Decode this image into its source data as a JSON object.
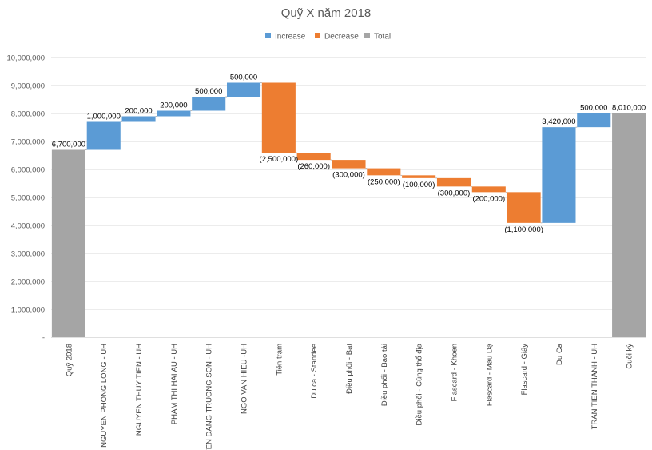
{
  "chart_data": {
    "type": "waterfall",
    "title": "Quỹ X năm 2018",
    "legend": [
      "Increase",
      "Decrease",
      "Total"
    ],
    "legend_position": "top",
    "colors": {
      "increase": "#5b9bd5",
      "decrease": "#ed7d31",
      "total": "#a5a5a5"
    },
    "ylim": [
      0,
      10000000
    ],
    "yticks": [
      "-",
      "1,000,000",
      "2,000,000",
      "3,000,000",
      "4,000,000",
      "5,000,000",
      "6,000,000",
      "7,000,000",
      "8,000,000",
      "9,000,000",
      "10,000,000"
    ],
    "grid": true,
    "items": [
      {
        "category": "Quỹ 2018",
        "value": 6700000,
        "kind": "total",
        "label": "6,700,000"
      },
      {
        "category": "NGUYEN PHONG LONG - UH",
        "value": 1000000,
        "kind": "increase",
        "label": "1,000,000"
      },
      {
        "category": "NGUYEN THUY TIEN - UH",
        "value": 200000,
        "kind": "increase",
        "label": "200,000"
      },
      {
        "category": "PHAM THI HAI AU - UH",
        "value": 200000,
        "kind": "increase",
        "label": "200,000"
      },
      {
        "category": "YEN DANG TRUONG SON - UH",
        "value": 500000,
        "kind": "increase",
        "label": "500,000"
      },
      {
        "category": "NGO VAN HIEU -UH",
        "value": 500000,
        "kind": "increase",
        "label": "500,000"
      },
      {
        "category": "Tiền trạm",
        "value": -2500000,
        "kind": "decrease",
        "label": "(2,500,000)"
      },
      {
        "category": "Du ca - Standee",
        "value": -260000,
        "kind": "decrease",
        "label": "(260,000)"
      },
      {
        "category": "Điều phối - Bạt",
        "value": -300000,
        "kind": "decrease",
        "label": "(300,000)"
      },
      {
        "category": "Điều phối - Bao tải",
        "value": -250000,
        "kind": "decrease",
        "label": "(250,000)"
      },
      {
        "category": "Điều phối - Cúng thổ địa",
        "value": -100000,
        "kind": "decrease",
        "label": "(100,000)"
      },
      {
        "category": "Flascard - Khoen",
        "value": -300000,
        "kind": "decrease",
        "label": "(300,000)"
      },
      {
        "category": "Flascard - Màu Dạ",
        "value": -200000,
        "kind": "decrease",
        "label": "(200,000)"
      },
      {
        "category": "Flascard - Giấy",
        "value": -1100000,
        "kind": "decrease",
        "label": "(1,100,000)"
      },
      {
        "category": "Du Ca",
        "value": 3420000,
        "kind": "increase",
        "label": "3,420,000"
      },
      {
        "category": "TRAN TIEN THANH - UH",
        "value": 500000,
        "kind": "increase",
        "label": "500,000"
      },
      {
        "category": "Cuối kỳ",
        "value": 8010000,
        "kind": "total",
        "label": "8,010,000"
      }
    ]
  }
}
